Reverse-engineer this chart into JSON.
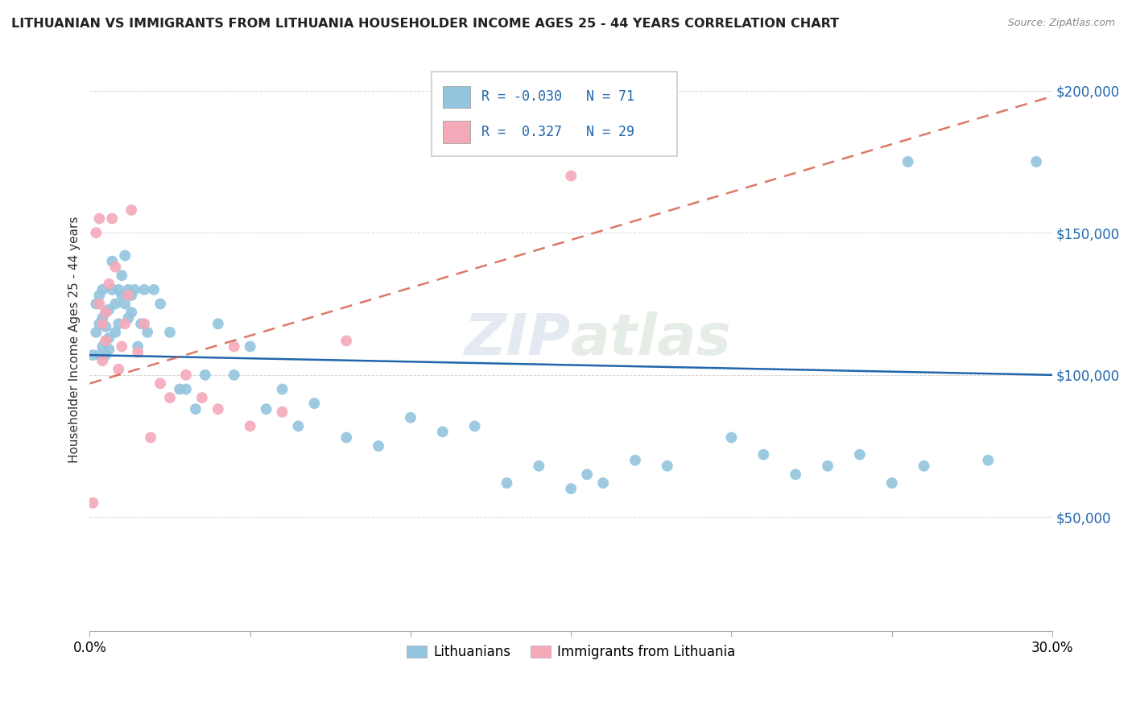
{
  "title": "LITHUANIAN VS IMMIGRANTS FROM LITHUANIA HOUSEHOLDER INCOME AGES 25 - 44 YEARS CORRELATION CHART",
  "source": "Source: ZipAtlas.com",
  "ylabel": "Householder Income Ages 25 - 44 years",
  "watermark": "ZIPatlas",
  "legend_label1": "Lithuanians",
  "legend_label2": "Immigrants from Lithuania",
  "r1": -0.03,
  "n1": 71,
  "r2": 0.327,
  "n2": 29,
  "color_blue": "#92c5de",
  "color_pink": "#f4a9b8",
  "color_blue_line": "#2166ac",
  "color_pink_line": "#d6604d",
  "ytick_labels": [
    "$50,000",
    "$100,000",
    "$150,000",
    "$200,000"
  ],
  "ytick_values": [
    50000,
    100000,
    150000,
    200000
  ],
  "xmin": 0.0,
  "xmax": 0.3,
  "ymin": 10000,
  "ymax": 215000,
  "blue_scatter_x": [
    0.001,
    0.002,
    0.002,
    0.003,
    0.003,
    0.003,
    0.004,
    0.004,
    0.004,
    0.005,
    0.005,
    0.005,
    0.005,
    0.006,
    0.006,
    0.006,
    0.007,
    0.007,
    0.008,
    0.008,
    0.009,
    0.009,
    0.01,
    0.01,
    0.011,
    0.011,
    0.012,
    0.012,
    0.013,
    0.013,
    0.014,
    0.015,
    0.016,
    0.017,
    0.018,
    0.02,
    0.022,
    0.025,
    0.028,
    0.03,
    0.033,
    0.036,
    0.04,
    0.045,
    0.05,
    0.055,
    0.06,
    0.065,
    0.07,
    0.08,
    0.09,
    0.1,
    0.11,
    0.12,
    0.13,
    0.14,
    0.15,
    0.155,
    0.16,
    0.17,
    0.18,
    0.2,
    0.21,
    0.22,
    0.23,
    0.24,
    0.25,
    0.255,
    0.26,
    0.28,
    0.295
  ],
  "blue_scatter_y": [
    107000,
    115000,
    125000,
    107000,
    118000,
    128000,
    110000,
    120000,
    130000,
    112000,
    122000,
    107000,
    117000,
    113000,
    123000,
    109000,
    140000,
    130000,
    125000,
    115000,
    118000,
    130000,
    135000,
    128000,
    125000,
    142000,
    120000,
    130000,
    122000,
    128000,
    130000,
    110000,
    118000,
    130000,
    115000,
    130000,
    125000,
    115000,
    95000,
    95000,
    88000,
    100000,
    118000,
    100000,
    110000,
    88000,
    95000,
    82000,
    90000,
    78000,
    75000,
    85000,
    80000,
    82000,
    62000,
    68000,
    60000,
    65000,
    62000,
    70000,
    68000,
    78000,
    72000,
    65000,
    68000,
    72000,
    62000,
    175000,
    68000,
    70000,
    175000
  ],
  "pink_scatter_x": [
    0.001,
    0.002,
    0.003,
    0.003,
    0.004,
    0.004,
    0.005,
    0.005,
    0.006,
    0.007,
    0.008,
    0.009,
    0.01,
    0.011,
    0.012,
    0.013,
    0.015,
    0.017,
    0.019,
    0.022,
    0.025,
    0.03,
    0.035,
    0.04,
    0.045,
    0.05,
    0.06,
    0.08,
    0.15
  ],
  "pink_scatter_y": [
    55000,
    150000,
    155000,
    125000,
    105000,
    118000,
    112000,
    122000,
    132000,
    155000,
    138000,
    102000,
    110000,
    118000,
    128000,
    158000,
    108000,
    118000,
    78000,
    97000,
    92000,
    100000,
    92000,
    88000,
    110000,
    82000,
    87000,
    112000,
    170000
  ],
  "blue_line_x": [
    0.0,
    0.3
  ],
  "blue_line_y": [
    107000,
    100000
  ],
  "pink_line_x": [
    0.0,
    0.3
  ],
  "pink_line_y": [
    97000,
    198000
  ]
}
